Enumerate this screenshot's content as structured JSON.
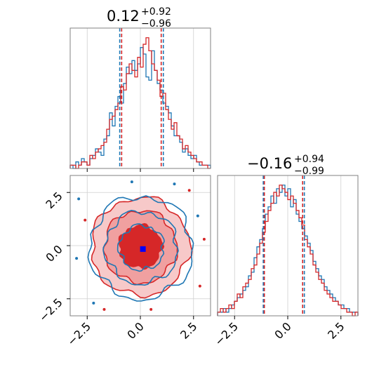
{
  "chart_data": [
    {
      "type": "histogram",
      "panel": "marginal-x",
      "title_main": "0.12",
      "title_sup": "+0.92",
      "title_sub": "−0.96",
      "xlim": [
        -3.3,
        3.3
      ],
      "grid": true,
      "series": [
        {
          "name": "",
          "color": "#1f77b4",
          "counts": [
            1,
            0,
            2,
            1,
            3,
            2,
            1,
            3,
            4,
            6,
            5,
            4,
            9,
            10,
            17,
            13,
            19,
            22,
            20,
            26,
            31,
            29,
            33,
            30,
            32,
            37,
            35,
            28,
            27,
            36,
            30,
            26,
            24,
            20,
            19,
            17,
            13,
            10,
            10,
            8,
            5,
            6,
            4,
            3,
            4,
            2,
            1,
            1,
            1,
            1
          ]
        },
        {
          "name": "",
          "color": "#d62728",
          "counts": [
            1,
            1,
            0,
            1,
            2,
            2,
            1,
            4,
            3,
            5,
            6,
            7,
            8,
            12,
            15,
            16,
            18,
            20,
            25,
            24,
            29,
            32,
            30,
            28,
            34,
            31,
            38,
            40,
            36,
            32,
            30,
            27,
            22,
            23,
            18,
            15,
            12,
            14,
            10,
            9,
            6,
            7,
            5,
            4,
            3,
            2,
            2,
            1,
            1,
            0
          ]
        }
      ],
      "quantiles": {
        "blue": [
          -0.97,
          1.08
        ],
        "red": [
          -0.88,
          0.98
        ]
      }
    },
    {
      "type": "histogram",
      "panel": "marginal-y",
      "title_main": "−0.16",
      "title_sup": "+0.94",
      "title_sub": "−0.99",
      "xlim": [
        -3.3,
        3.3
      ],
      "grid": true,
      "series": [
        {
          "name": "",
          "color": "#1f77b4",
          "counts": [
            1,
            1,
            2,
            1,
            2,
            3,
            4,
            5,
            6,
            7,
            8,
            11,
            12,
            16,
            19,
            21,
            24,
            28,
            30,
            33,
            31,
            35,
            34,
            36,
            33,
            35,
            30,
            32,
            28,
            26,
            24,
            22,
            20,
            18,
            15,
            13,
            11,
            10,
            8,
            7,
            6,
            5,
            4,
            3,
            3,
            2,
            2,
            1,
            1,
            1
          ]
        },
        {
          "name": "",
          "color": "#d62728",
          "counts": [
            1,
            2,
            1,
            2,
            3,
            2,
            4,
            6,
            5,
            8,
            9,
            10,
            13,
            14,
            17,
            20,
            23,
            26,
            29,
            31,
            34,
            33,
            36,
            35,
            34,
            32,
            33,
            31,
            29,
            27,
            25,
            21,
            19,
            17,
            14,
            12,
            10,
            9,
            7,
            6,
            5,
            4,
            4,
            3,
            2,
            2,
            1,
            1,
            0,
            1
          ]
        }
      ],
      "quantiles": {
        "blue": [
          -1.15,
          0.78
        ],
        "red": [
          -1.1,
          0.7
        ]
      }
    },
    {
      "type": "contour",
      "panel": "joint",
      "xlim": [
        -3.3,
        3.3
      ],
      "ylim": [
        -3.3,
        3.3
      ],
      "grid": true,
      "levels": [
        1.0,
        1.7,
        2.3
      ],
      "series": [
        {
          "name": "",
          "color": "#1f77b4",
          "center": [
            0.05,
            -0.1
          ],
          "filled": false
        },
        {
          "name": "",
          "color": "#d62728",
          "center": [
            0.0,
            -0.05
          ],
          "filled": true,
          "fill": "#f0a0a0",
          "core": "#d62728"
        }
      ],
      "truth_marker": {
        "x": 0.12,
        "y": -0.16,
        "color": "#0000ff"
      },
      "xticks": [
        "−2.5",
        "0.0",
        "2.5"
      ],
      "yticks": [
        "2.5",
        "0.0",
        "−2.5"
      ],
      "xtick_values": [
        -2.5,
        0.0,
        2.5
      ],
      "ytick_values": [
        2.5,
        0.0,
        -2.5
      ]
    }
  ]
}
